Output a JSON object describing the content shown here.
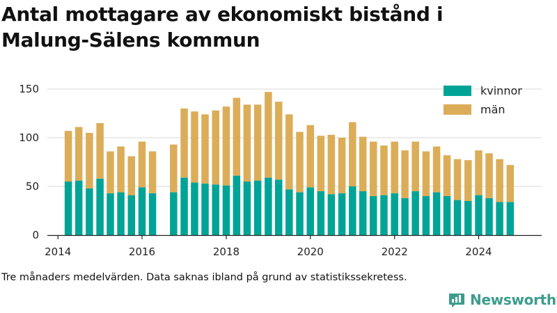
{
  "title": "Antal mottagare av ekonomiskt bistånd i Malung-Sälens kommun",
  "footnote": "Tre månaders medelvärden. Data saknas ibland på grund av statistikssekretess.",
  "brand": "Newsworthy",
  "colors": {
    "kvinnor": "#00a497",
    "man": "#dcad58",
    "grid": "#d9d9d9",
    "brand": "#3d9c8c"
  },
  "chart_data": {
    "type": "bar",
    "stacked": true,
    "legend_position": "top-right",
    "grid": true,
    "ylim": [
      0,
      150
    ],
    "yticks": [
      0,
      50,
      100,
      150
    ],
    "xlim": [
      "2013-10-01",
      "2025-07-01"
    ],
    "xticks": [
      "2014",
      "2016",
      "2018",
      "2020",
      "2022",
      "2024"
    ],
    "x": [
      "2014-04",
      "2014-07",
      "2014-10",
      "2015-01",
      "2015-04",
      "2015-07",
      "2015-10",
      "2016-01",
      "2016-04",
      "2016-10",
      "2017-01",
      "2017-04",
      "2017-07",
      "2017-10",
      "2018-01",
      "2018-04",
      "2018-07",
      "2018-10",
      "2019-01",
      "2019-04",
      "2019-07",
      "2019-10",
      "2020-01",
      "2020-04",
      "2020-07",
      "2020-10",
      "2021-01",
      "2021-04",
      "2021-07",
      "2021-10",
      "2022-01",
      "2022-04",
      "2022-07",
      "2022-10",
      "2023-01",
      "2023-04",
      "2023-07",
      "2023-10",
      "2024-01",
      "2024-04",
      "2024-07",
      "2024-10"
    ],
    "series": [
      {
        "name": "kvinnor",
        "values": [
          55,
          56,
          48,
          58,
          43,
          44,
          41,
          49,
          43,
          44,
          59,
          54,
          53,
          52,
          51,
          61,
          55,
          56,
          59,
          57,
          47,
          44,
          49,
          45,
          42,
          43,
          50,
          45,
          40,
          41,
          43,
          38,
          45,
          40,
          44,
          40,
          36,
          35,
          41,
          38,
          34,
          34
        ]
      },
      {
        "name": "män",
        "values": [
          52,
          55,
          57,
          57,
          43,
          47,
          40,
          47,
          43,
          49,
          71,
          73,
          71,
          76,
          81,
          80,
          79,
          78,
          88,
          80,
          77,
          62,
          64,
          57,
          61,
          57,
          66,
          56,
          56,
          51,
          53,
          49,
          51,
          46,
          47,
          42,
          42,
          42,
          46,
          46,
          44,
          38
        ]
      }
    ]
  }
}
